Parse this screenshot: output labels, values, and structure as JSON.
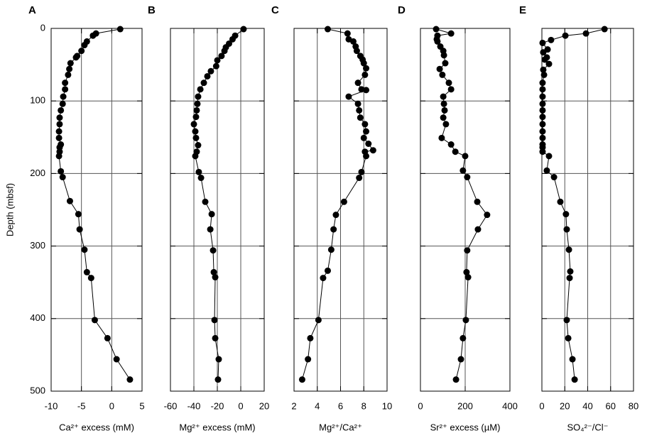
{
  "chart_data": [
    {
      "type": "line",
      "title": "A",
      "xlabel": "Ca²⁺ excess (mM)",
      "ylabel": "Depth (mbsf)",
      "color": "#000000",
      "grid": true,
      "xlim": [
        -10,
        5
      ],
      "xticks": [
        -10,
        -5,
        0,
        5
      ],
      "ylim": [
        0,
        500
      ],
      "yticks": [
        0,
        100,
        200,
        300,
        400,
        500
      ],
      "x": [
        1.4,
        -2.6,
        -3.1,
        -4.1,
        -4.5,
        -5,
        -5.7,
        -5.9,
        -6.8,
        -7,
        -7.2,
        -7.7,
        -7.7,
        -8,
        -8.1,
        -8.4,
        -8.6,
        -8.6,
        -8.7,
        -8.7,
        -8.4,
        -8.6,
        -8.6,
        -8.7,
        -8.4,
        -8.1,
        -6.9,
        -5.5,
        -5.3,
        -4.5,
        -4.1,
        -3.4,
        -2.8,
        -0.7,
        0.8,
        3
      ],
      "y": [
        1,
        7,
        10,
        18,
        23,
        31,
        38,
        40,
        48,
        56,
        64,
        75,
        84,
        94,
        104,
        113,
        123,
        132,
        142,
        151,
        160,
        164,
        170,
        176,
        197,
        205,
        238,
        256,
        277,
        305,
        336,
        344,
        402,
        427,
        456,
        484
      ]
    },
    {
      "type": "line",
      "title": "B",
      "xlabel": "Mg²⁺ excess (mM)",
      "color": "#000000",
      "grid": true,
      "xlim": [
        -60,
        20
      ],
      "xticks": [
        -60,
        -40,
        -20,
        0,
        20
      ],
      "ylim": [
        0,
        500
      ],
      "yticks": [
        0,
        100,
        200,
        300,
        400,
        500
      ],
      "x": [
        2.4,
        -4.8,
        -7,
        -10,
        -12.7,
        -13.9,
        -16.4,
        -20,
        -21,
        -25.5,
        -28.5,
        -31.5,
        -34.5,
        -36.4,
        -37,
        -37.6,
        -38.2,
        -40,
        -38.8,
        -38.2,
        -36.4,
        -37.6,
        -38.8,
        -35.8,
        -33.9,
        -30.3,
        -24.8,
        -26,
        -23.6,
        -23,
        -21.8,
        -22.4,
        -21.8,
        -18.8,
        -19.4
      ],
      "y": [
        1,
        10,
        15,
        21,
        26,
        31,
        38,
        44,
        52,
        59,
        66,
        75,
        84,
        94,
        104,
        113,
        122,
        132,
        142,
        151,
        161,
        170,
        176,
        198,
        206,
        239,
        256,
        277,
        306,
        336,
        343,
        402,
        427,
        456,
        484
      ]
    },
    {
      "type": "line",
      "title": "C",
      "xlabel": "Mg²⁺/Ca²⁺",
      "color": "#000000",
      "grid": true,
      "xlim": [
        2,
        10
      ],
      "xticks": [
        2,
        4,
        6,
        8,
        10
      ],
      "ylim": [
        0,
        500
      ],
      "yticks": [
        0,
        100,
        200,
        300,
        400,
        500
      ],
      "x": [
        4.9,
        6.6,
        6.7,
        7.1,
        7.3,
        7.4,
        7.7,
        7.9,
        8,
        8.2,
        8.1,
        7.5,
        7.8,
        8.2,
        6.7,
        7.5,
        7.6,
        7.7,
        8.1,
        8.2,
        8,
        8.4,
        8.8,
        8.1,
        8.2,
        7.8,
        7.6,
        6.3,
        5.6,
        5.4,
        5.2,
        4.9,
        4.5,
        4.1,
        3.4,
        3.2,
        2.7
      ],
      "y": [
        1,
        7,
        15,
        18,
        25,
        31,
        38,
        43,
        48,
        55,
        64,
        75,
        84,
        85,
        94,
        104,
        113,
        123,
        132,
        142,
        151,
        159,
        168,
        170,
        176,
        198,
        206,
        239,
        257,
        277,
        305,
        334,
        344,
        402,
        427,
        456,
        484
      ]
    },
    {
      "type": "line",
      "title": "D",
      "xlabel": "Sr²⁺ excess (µM)",
      "color": "#000000",
      "grid": true,
      "xlim": [
        0,
        400
      ],
      "xticks": [
        0,
        200,
        400
      ],
      "ylim": [
        0,
        500
      ],
      "yticks": [
        0,
        100,
        200,
        300,
        400,
        500
      ],
      "x": [
        70,
        137,
        76,
        73,
        76,
        89,
        102,
        105,
        111,
        86,
        98,
        127,
        137,
        102,
        105,
        108,
        102,
        114,
        95,
        137,
        156,
        200,
        190,
        209,
        254,
        298,
        257,
        209,
        206,
        213,
        203,
        190,
        181,
        159
      ],
      "y": [
        1,
        7,
        10,
        15,
        18,
        25,
        31,
        37,
        48,
        56,
        64,
        75,
        84,
        94,
        104,
        113,
        123,
        132,
        151,
        160,
        170,
        176,
        196,
        205,
        239,
        257,
        277,
        306,
        336,
        343,
        402,
        427,
        456,
        484
      ]
    },
    {
      "type": "line",
      "title": "E",
      "xlabel": "SO₄²⁻/Cl⁻",
      "color": "#000000",
      "grid": true,
      "xlim": [
        0,
        80
      ],
      "xticks": [
        0,
        20,
        40,
        60,
        80
      ],
      "ylim": [
        0,
        500
      ],
      "yticks": [
        0,
        100,
        200,
        300,
        400,
        500
      ],
      "x": [
        54.7,
        38.5,
        20.5,
        8,
        0.6,
        5,
        1.2,
        4.3,
        2.5,
        6.2,
        1.2,
        1.9,
        0.6,
        0.6,
        0.6,
        0.6,
        0.6,
        0.6,
        0.6,
        0.6,
        0.6,
        0.6,
        0.6,
        0.6,
        6.2,
        4.3,
        10.6,
        16.1,
        21,
        21.7,
        23.6,
        24.8,
        24.2,
        21.7,
        23,
        26.7,
        28.6
      ],
      "y": [
        1,
        7,
        10,
        16,
        20,
        29,
        33,
        40,
        43,
        49,
        57,
        64,
        75,
        84,
        94,
        104,
        113,
        122,
        132,
        142,
        151,
        160,
        164,
        170,
        176,
        196,
        205,
        239,
        256,
        277,
        305,
        335,
        344,
        402,
        427,
        456,
        484
      ]
    }
  ]
}
